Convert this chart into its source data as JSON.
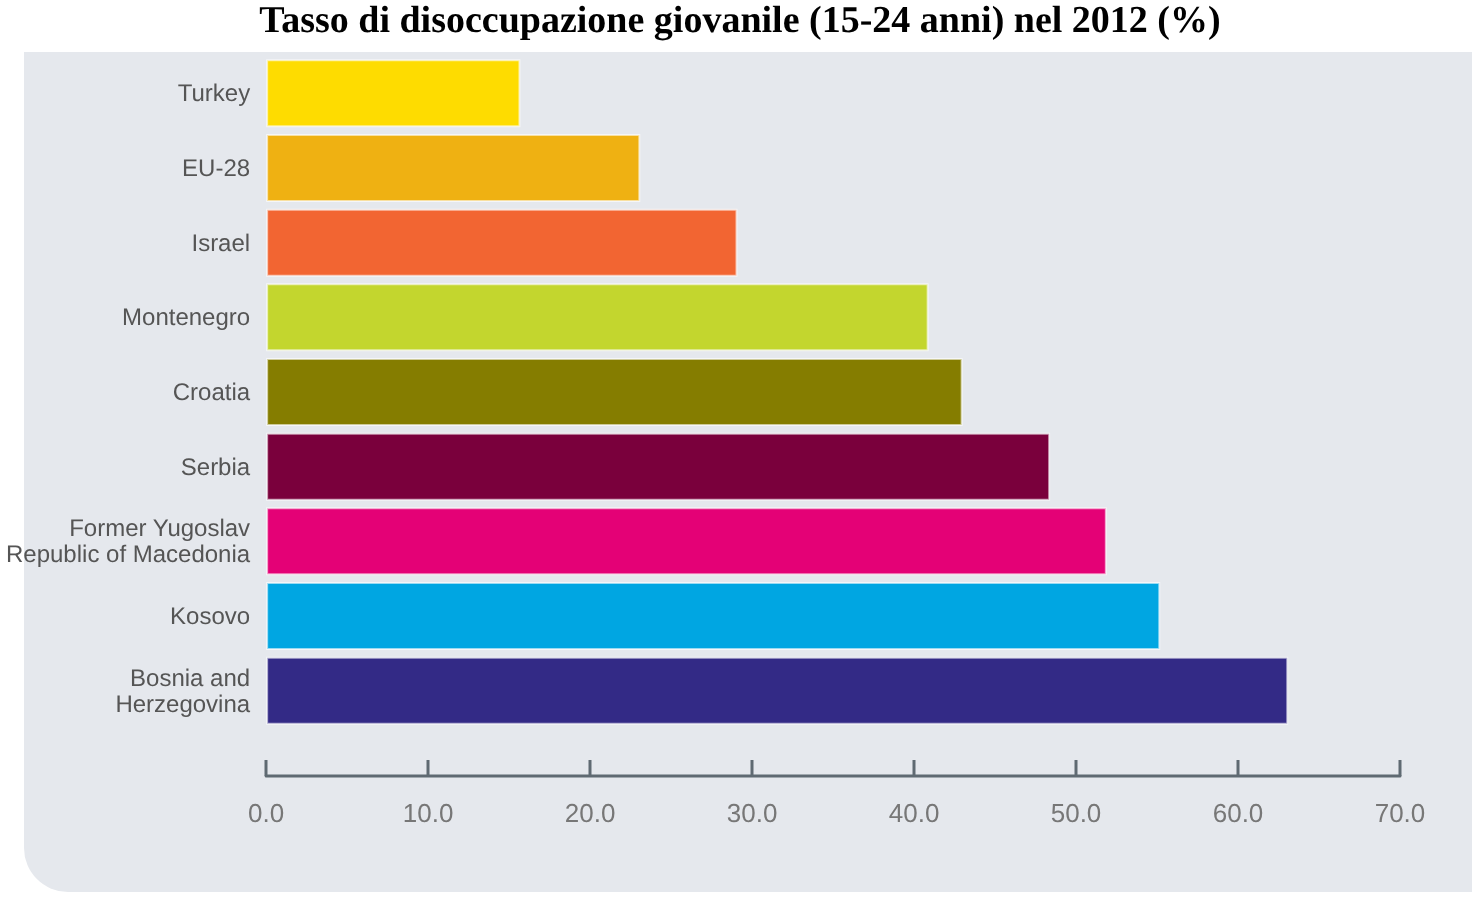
{
  "chart_data": {
    "type": "bar",
    "orientation": "horizontal",
    "title": "Tasso di disoccupazione giovanile (15-24 anni) nel 2012 (%)",
    "categories": [
      "Turkey",
      "EU-28",
      "Israel",
      "Montenegro",
      "Croatia",
      "Serbia",
      "Former Yugoslav\nRepublic of Macedonia",
      "Kosovo",
      "Bosnia and\nHerzegovina"
    ],
    "values": [
      15.7,
      23.1,
      29.1,
      40.9,
      43.0,
      48.4,
      51.9,
      55.2,
      63.1
    ],
    "colors": [
      "#fedc00",
      "#efb112",
      "#f26532",
      "#c3d62e",
      "#857d00",
      "#7a003c",
      "#e40176",
      "#00a6e2",
      "#332a86"
    ],
    "xlim": [
      0,
      70
    ],
    "xticks": [
      {
        "value": 0,
        "label": "0.0"
      },
      {
        "value": 10,
        "label": "10.0"
      },
      {
        "value": 20,
        "label": "20.0"
      },
      {
        "value": 30,
        "label": "30.0"
      },
      {
        "value": 40,
        "label": "40.0"
      },
      {
        "value": 50,
        "label": "50.0"
      },
      {
        "value": 60,
        "label": "60.0"
      },
      {
        "value": 70,
        "label": "70.0"
      }
    ],
    "grid": false
  }
}
